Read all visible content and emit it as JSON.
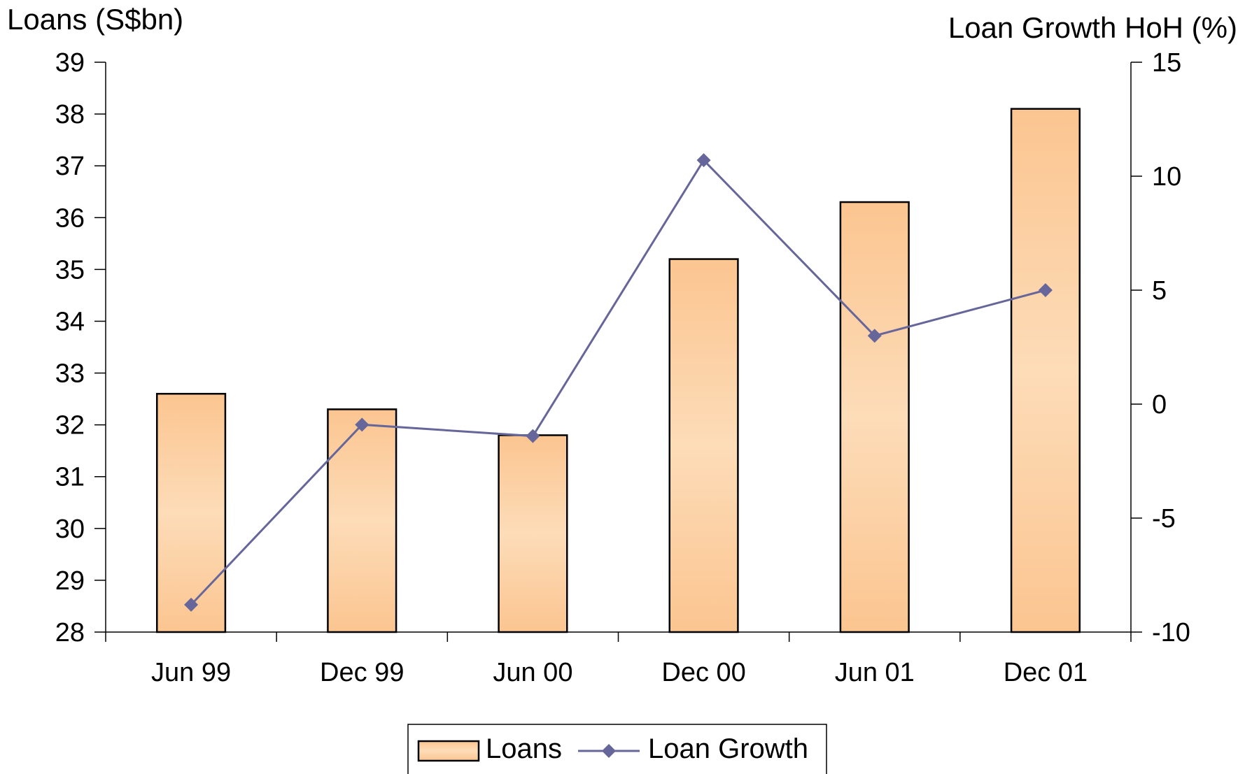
{
  "chart_data": {
    "type": "bar",
    "categories": [
      "Jun 99",
      "Dec 99",
      "Jun 00",
      "Dec 00",
      "Jun 01",
      "Dec 01"
    ],
    "series": [
      {
        "name": "Loans",
        "type": "bar",
        "axis": "left",
        "values": [
          32.6,
          32.3,
          31.8,
          35.2,
          36.3,
          38.1
        ]
      },
      {
        "name": "Loan Growth",
        "type": "line",
        "axis": "right",
        "values": [
          -8.8,
          -0.9,
          -1.4,
          10.7,
          3.0,
          5.0
        ]
      }
    ],
    "ylabel": "Loans (S$bn)",
    "y2label": "Loan Growth HoH (%)",
    "ylim": [
      28,
      39
    ],
    "y2lim": [
      -10,
      15
    ],
    "yticks": [
      "28",
      "29",
      "30",
      "31",
      "32",
      "33",
      "34",
      "35",
      "36",
      "37",
      "38",
      "39"
    ],
    "y2ticks": [
      "-10",
      "-5",
      "0",
      "5",
      "10",
      "15"
    ],
    "legend_position": "bottom-center",
    "grid": false
  },
  "colors": {
    "bar_light": "#fddcb8",
    "bar_dark": "#fbc590",
    "bar_stroke": "#000000",
    "line": "#66669a",
    "marker": "#66669a"
  }
}
